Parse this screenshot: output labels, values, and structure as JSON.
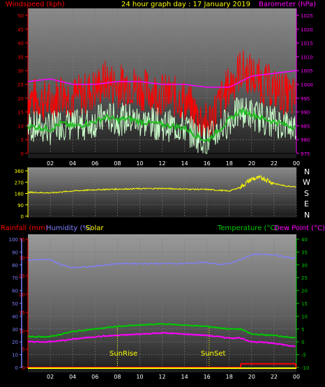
{
  "header": {
    "windspeed_label": "Windspeed (kph)",
    "title": "24 hour graph day : 17 January 2019",
    "barometer_label": "Barometer (hPa)"
  },
  "x_ticks": [
    "02",
    "04",
    "06",
    "08",
    "10",
    "12",
    "14",
    "16",
    "18",
    "20",
    "22",
    "00"
  ],
  "direction_letters": [
    "N",
    "W",
    "S",
    "E",
    "N"
  ],
  "lower_labels": {
    "rainfall": "Rainfall (mm)",
    "humidity": "Humidity (%)",
    "solar": "Solar",
    "temperature": "Temperature (°C)",
    "dewpoint": "Dew Point (°C)",
    "sunrise": "SunRise",
    "sunset": "SunSet"
  },
  "colors": {
    "wind": "#ff0000",
    "wind_avg": "#22bb22",
    "wind_light": "#ccffcc",
    "barometer": "#ff00ff",
    "direction": "#ffff00",
    "humidity": "#8080ff",
    "temperature": "#00cc00",
    "dewpoint": "#ff00ff",
    "rain": "#ff0000",
    "solar": "#ffff00"
  },
  "chart_data": [
    {
      "type": "line",
      "title": "24 hour graph day : 17 January 2019",
      "x_ticks": [
        "02",
        "04",
        "06",
        "08",
        "10",
        "12",
        "14",
        "16",
        "18",
        "20",
        "22",
        "00"
      ],
      "y_left": {
        "label": "Windspeed (kph)",
        "ticks": [
          0,
          5,
          10,
          15,
          20,
          25,
          30,
          35,
          40,
          45,
          50
        ],
        "range": [
          0,
          50
        ]
      },
      "y_right": {
        "label": "Barometer (hPa)",
        "ticks": [
          975,
          980,
          985,
          990,
          995,
          1000,
          1005,
          1010,
          1015,
          1020,
          1025
        ],
        "range": [
          975,
          1025
        ]
      },
      "series": [
        {
          "name": "Windspeed (kph)",
          "x_hours": [
            0,
            1,
            2,
            3,
            4,
            5,
            6,
            7,
            8,
            9,
            10,
            11,
            12,
            13,
            14,
            15,
            16,
            17,
            18,
            19,
            20,
            21,
            22,
            23,
            24
          ],
          "values": [
            18,
            17,
            16,
            20,
            18,
            19,
            21,
            24,
            22,
            23,
            21,
            20,
            19,
            18,
            17,
            12,
            8,
            15,
            22,
            28,
            26,
            23,
            21,
            19,
            17
          ]
        },
        {
          "name": "Barometer (hPa)",
          "x_hours": [
            0,
            2,
            4,
            6,
            8,
            10,
            12,
            14,
            16,
            18,
            20,
            22,
            24
          ],
          "values": [
            1001,
            1002,
            1000,
            1000,
            1001,
            1001,
            1000,
            1000,
            999,
            999,
            1003,
            1004,
            1005
          ]
        }
      ]
    },
    {
      "type": "line",
      "y_left": {
        "ticks": [
          0,
          90,
          180,
          270,
          360
        ],
        "range": [
          0,
          360
        ]
      },
      "y_right_labels": [
        "N",
        "W",
        "S",
        "E",
        "N"
      ],
      "series": [
        {
          "name": "Wind Direction",
          "x_hours": [
            0,
            2,
            4,
            6,
            8,
            10,
            12,
            14,
            16,
            18,
            19,
            20,
            21,
            22,
            23,
            24
          ],
          "values": [
            190,
            185,
            200,
            210,
            215,
            218,
            220,
            215,
            212,
            200,
            230,
            295,
            305,
            260,
            240,
            235
          ]
        }
      ]
    },
    {
      "type": "line",
      "y_axes": {
        "humidity": {
          "label": "Humidity (%)",
          "ticks": [
            0,
            10,
            20,
            30,
            40,
            50,
            60,
            70,
            80,
            90,
            100
          ],
          "range": [
            0,
            100
          ]
        },
        "rainfall": {
          "label": "Rainfall (mm)",
          "ticks": [
            0,
            5,
            10,
            15,
            20,
            25,
            30,
            35
          ],
          "range": [
            0,
            35
          ]
        },
        "temperature": {
          "label": "Temperature (°C)",
          "ticks": [
            -10,
            -5,
            0,
            5,
            10,
            15,
            20,
            25,
            30,
            35,
            40
          ],
          "range": [
            -10,
            40
          ]
        }
      },
      "annotations": [
        {
          "label": "SunRise",
          "x_hour": 8.0
        },
        {
          "label": "SunSet",
          "x_hour": 16.2
        }
      ],
      "series": [
        {
          "name": "Humidity (%)",
          "x_hours": [
            0,
            2,
            3,
            4,
            6,
            8,
            10,
            12,
            14,
            16,
            17,
            18,
            19,
            20,
            22,
            23,
            24
          ],
          "values": [
            84,
            84,
            80,
            78,
            79,
            81,
            81,
            81,
            81,
            82,
            80,
            81,
            84,
            88,
            88,
            86,
            85
          ]
        },
        {
          "name": "Temperature (°C)",
          "x_hours": [
            0,
            2,
            4,
            6,
            8,
            10,
            12,
            14,
            16,
            18,
            19,
            20,
            22,
            24
          ],
          "values": [
            2,
            2,
            4,
            5,
            6,
            6.5,
            7,
            6.5,
            6,
            5,
            5,
            3,
            2.5,
            1.5
          ]
        },
        {
          "name": "Dew Point (°C)",
          "x_hours": [
            0,
            2,
            4,
            6,
            8,
            10,
            12,
            14,
            16,
            18,
            19,
            20,
            22,
            24
          ],
          "values": [
            0,
            0,
            1,
            2,
            2.5,
            3,
            3.5,
            3,
            2.5,
            1.5,
            1.5,
            0,
            -0.5,
            -2
          ]
        },
        {
          "name": "Rainfall (mm)",
          "x_hours": [
            0,
            19,
            19.05,
            23.9,
            24
          ],
          "values": [
            0,
            0,
            1,
            1,
            0
          ]
        },
        {
          "name": "Solar",
          "x_hours": [
            0,
            24
          ],
          "values": [
            0,
            0
          ]
        }
      ]
    }
  ]
}
